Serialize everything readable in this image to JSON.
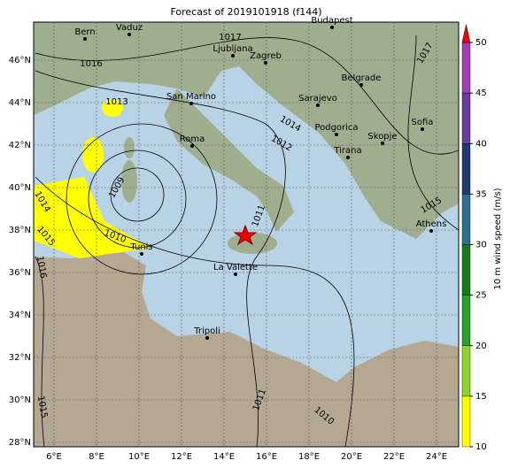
{
  "title": "Forecast of 2019101918 (f144)",
  "lat_ticks": [
    {
      "value": 28,
      "label": "28°N"
    },
    {
      "value": 30,
      "label": "30°N"
    },
    {
      "value": 32,
      "label": "32°N"
    },
    {
      "value": 34,
      "label": "34°N"
    },
    {
      "value": 36,
      "label": "36°N"
    },
    {
      "value": 38,
      "label": "38°N"
    },
    {
      "value": 40,
      "label": "40°N"
    },
    {
      "value": 42,
      "label": "42°N"
    },
    {
      "value": 44,
      "label": "44°N"
    },
    {
      "value": 46,
      "label": "46°N"
    }
  ],
  "lon_ticks": [
    {
      "value": 6,
      "label": "6°E"
    },
    {
      "value": 8,
      "label": "8°E"
    },
    {
      "value": 10,
      "label": "10°E"
    },
    {
      "value": 12,
      "label": "12°E"
    },
    {
      "value": 14,
      "label": "14°E"
    },
    {
      "value": 16,
      "label": "16°E"
    },
    {
      "value": 18,
      "label": "18°E"
    },
    {
      "value": 20,
      "label": "20°E"
    },
    {
      "value": 22,
      "label": "22°E"
    },
    {
      "value": 24,
      "label": "24°E"
    }
  ],
  "cities": [
    "Bern",
    "Vaduz",
    "Budapest",
    "Ljubljana",
    "Zagreb",
    "Belgrade",
    "Sarajevo",
    "San Marino",
    "Roma",
    "Podgorica",
    "Skopje",
    "Tirana",
    "Sofia",
    "Athens",
    "Tunis",
    "La Valette",
    "Tripoli"
  ],
  "isobar_labels": [
    "1016",
    "1017",
    "1017",
    "1013",
    "1014",
    "1012",
    "1015",
    "1011",
    "1009",
    "1010",
    "1014",
    "1015",
    "1016",
    "1015",
    "1011",
    "1010"
  ],
  "colorbar": {
    "label": "10 m wind speed (m/s)",
    "lim": [
      10,
      50
    ],
    "ticks": [
      10,
      15,
      20,
      25,
      30,
      35,
      40,
      45,
      50
    ],
    "colors": [
      "#ffff00",
      "#8fd32c",
      "#2ca02c",
      "#1a7a1a",
      "#2e6e8e",
      "#1f3a6e",
      "#6a3d9a",
      "#a03fb0"
    ]
  }
}
